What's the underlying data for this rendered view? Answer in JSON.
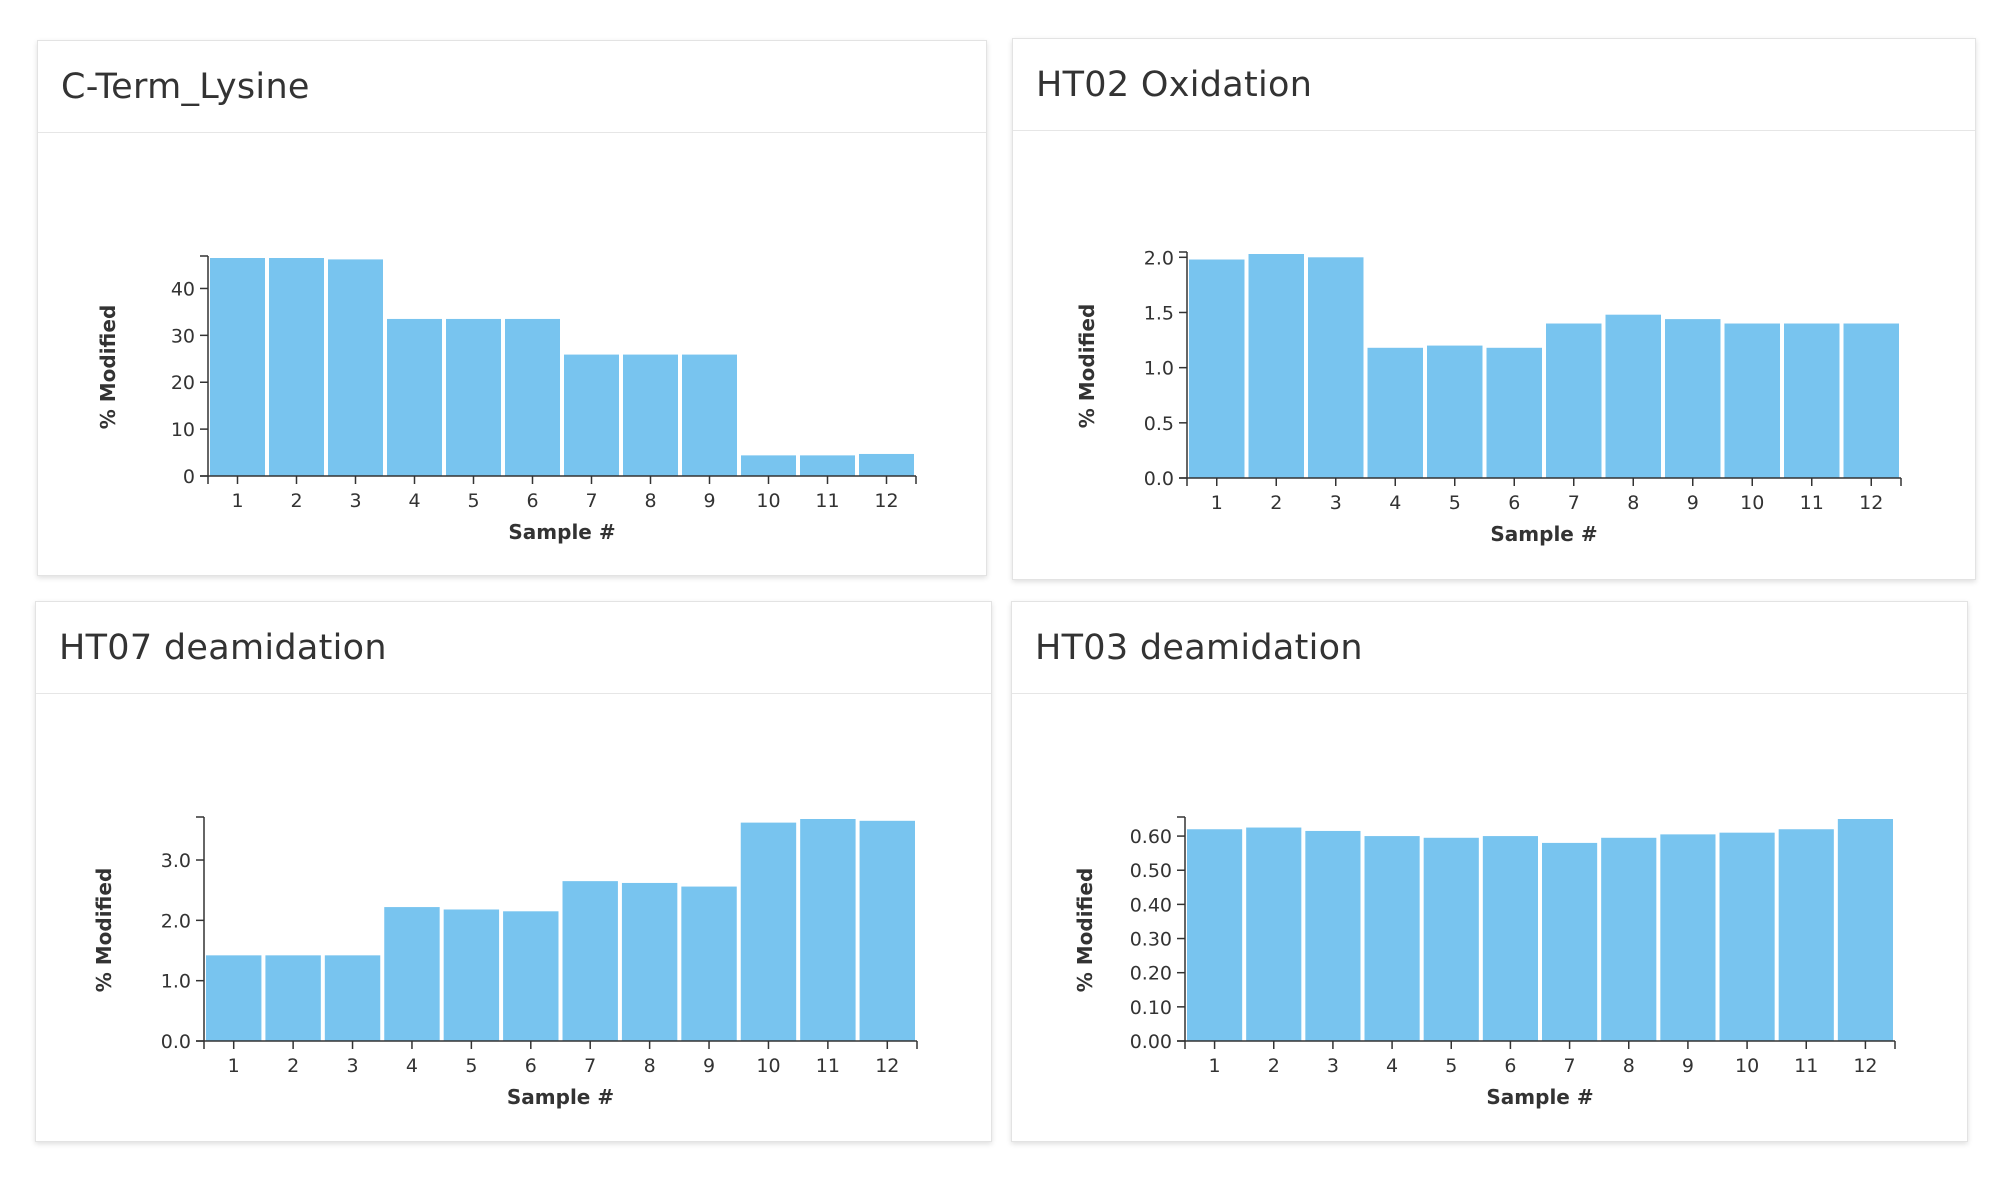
{
  "colors": {
    "bar": "#78c4ef",
    "axis": "#333333"
  },
  "charts": [
    {
      "title": "C-Term_Lysine",
      "chart_data": {
        "type": "bar",
        "title": "C-Term_Lysine",
        "xlabel": "Sample #",
        "ylabel": "% Modified",
        "categories": [
          "1",
          "2",
          "3",
          "4",
          "5",
          "6",
          "7",
          "8",
          "9",
          "10",
          "11",
          "12"
        ],
        "values": [
          46.5,
          46.5,
          46.2,
          33.5,
          33.5,
          33.5,
          25.9,
          25.9,
          25.9,
          4.4,
          4.4,
          4.7
        ],
        "yticks": [
          "0",
          "10",
          "20",
          "30",
          "40"
        ],
        "ylim": [
          0,
          46.5
        ],
        "grid": false
      }
    },
    {
      "title": "HT02 Oxidation",
      "chart_data": {
        "type": "bar",
        "title": "HT02 Oxidation",
        "xlabel": "Sample #",
        "ylabel": "% Modified",
        "categories": [
          "1",
          "2",
          "3",
          "4",
          "5",
          "6",
          "7",
          "8",
          "9",
          "10",
          "11",
          "12"
        ],
        "values": [
          1.98,
          2.03,
          2.0,
          1.18,
          1.2,
          1.18,
          1.4,
          1.48,
          1.44,
          1.4,
          1.4,
          1.4
        ],
        "yticks": [
          "0.0",
          "0.5",
          "1.0",
          "1.5",
          "2.0"
        ],
        "ylim": [
          0,
          2.03
        ],
        "grid": false
      }
    },
    {
      "title": "HT07 deamidation",
      "chart_data": {
        "type": "bar",
        "title": "HT07 deamidation",
        "xlabel": "Sample #",
        "ylabel": "% Modified",
        "categories": [
          "1",
          "2",
          "3",
          "4",
          "5",
          "6",
          "7",
          "8",
          "9",
          "10",
          "11",
          "12"
        ],
        "values": [
          1.42,
          1.42,
          1.42,
          2.22,
          2.18,
          2.15,
          2.65,
          2.62,
          2.56,
          3.62,
          3.68,
          3.65
        ],
        "yticks": [
          "0.0",
          "1.0",
          "2.0",
          "3.0"
        ],
        "ylim": [
          0,
          3.68
        ],
        "grid": false
      }
    },
    {
      "title": "HT03 deamidation",
      "chart_data": {
        "type": "bar",
        "title": "HT03 deamidation",
        "xlabel": "Sample #",
        "ylabel": "% Modified",
        "categories": [
          "1",
          "2",
          "3",
          "4",
          "5",
          "6",
          "7",
          "8",
          "9",
          "10",
          "11",
          "12"
        ],
        "values": [
          0.62,
          0.625,
          0.615,
          0.6,
          0.595,
          0.6,
          0.58,
          0.595,
          0.605,
          0.61,
          0.62,
          0.65
        ],
        "yticks": [
          "0.00",
          "0.10",
          "0.20",
          "0.30",
          "0.40",
          "0.50",
          "0.60"
        ],
        "ylim": [
          0,
          0.65
        ],
        "grid": false
      }
    }
  ]
}
